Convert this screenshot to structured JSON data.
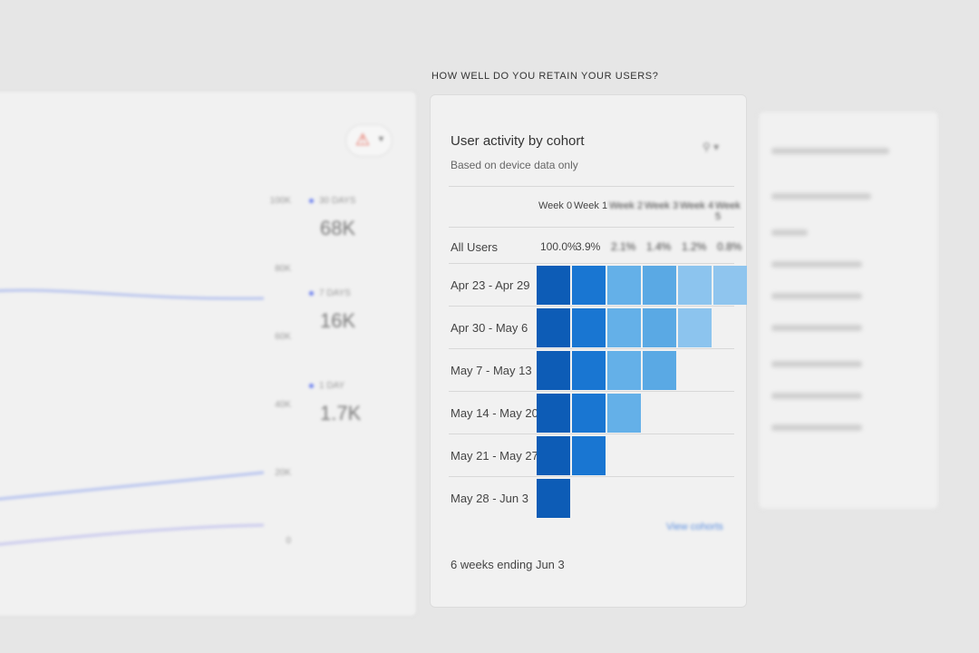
{
  "section_title": "HOW WELL DO YOU RETAIN YOUR USERS?",
  "cohort_card": {
    "title": "User activity by cohort",
    "subtitle": "Based on device data only",
    "columns": [
      "Week 0",
      "Week 1",
      "Week 2",
      "Week 3",
      "Week 4",
      "Week 5"
    ],
    "all_users_label": "All Users",
    "all_users_values": [
      "100.0%",
      "3.9%",
      "2.1%",
      "1.4%",
      "1.2%",
      "0.8%"
    ],
    "rows": [
      {
        "label": "Apr 23 - Apr 29",
        "weeks": 6
      },
      {
        "label": "Apr 30 - May 6",
        "weeks": 5
      },
      {
        "label": "May 7 - May 13",
        "weeks": 4
      },
      {
        "label": "May 14 - May 20",
        "weeks": 3
      },
      {
        "label": "May 21 - May 27",
        "weeks": 2
      },
      {
        "label": "May 28 - Jun 3",
        "weeks": 1
      }
    ],
    "cell_colors": [
      "#0d5cb6",
      "#1976d2",
      "#64b0e8",
      "#5aa9e4",
      "#8cc4ee",
      "#8fc5ee"
    ],
    "footer": "6 weeks ending Jun 3",
    "view_link": "View cohorts"
  },
  "active_users_card": {
    "y_ticks": [
      "100K",
      "80K",
      "60K",
      "40K",
      "20K",
      "0"
    ],
    "legend": [
      {
        "label": "30 DAYS",
        "value": "68K"
      },
      {
        "label": "7 DAYS",
        "value": "16K"
      },
      {
        "label": "1 DAY",
        "value": "1.7K"
      }
    ],
    "accent": "#6a7ff0"
  }
}
